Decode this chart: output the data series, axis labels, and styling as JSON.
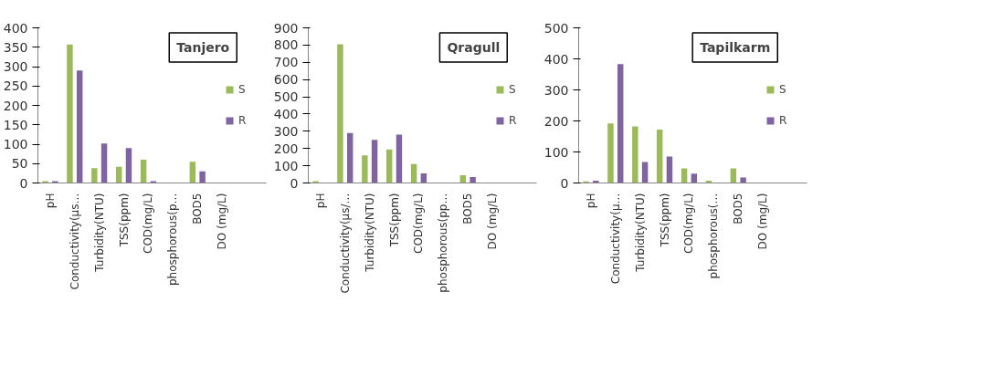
{
  "chart_data": [
    {
      "type": "bar",
      "title": "Tanjero",
      "categories": [
        "pH",
        "Conductivity(µs…",
        "Turbidity(NTU)",
        "TSS(ppm)",
        "COD(mg/L)",
        "phosphorous(p…",
        "BOD5",
        "DO (mg/L)"
      ],
      "series": [
        {
          "name": "S",
          "color": "#9bbb59",
          "values": [
            5,
            357,
            38,
            42,
            60,
            0,
            55,
            0
          ]
        },
        {
          "name": "R",
          "color": "#8064a2",
          "values": [
            5,
            290,
            102,
            90,
            5,
            0,
            30,
            0
          ]
        }
      ],
      "ylim": [
        0,
        400
      ],
      "yticks": [
        0,
        50,
        100,
        150,
        200,
        250,
        300,
        350,
        400
      ],
      "grid": false,
      "legend": "right"
    },
    {
      "type": "bar",
      "title": "Qragull",
      "categories": [
        "pH",
        "Conductivity(µs/…",
        "Turbidity(NTU)",
        "TSS(ppm)",
        "COD(mg/L)",
        "phosphorous(pp…",
        "BOD5",
        "DO (mg/L)"
      ],
      "series": [
        {
          "name": "S",
          "color": "#9bbb59",
          "values": [
            10,
            805,
            160,
            195,
            110,
            0,
            45,
            0
          ]
        },
        {
          "name": "R",
          "color": "#8064a2",
          "values": [
            0,
            290,
            250,
            280,
            55,
            0,
            35,
            0
          ]
        }
      ],
      "ylim": [
        0,
        900
      ],
      "yticks": [
        0,
        100,
        200,
        300,
        400,
        500,
        600,
        700,
        800,
        900
      ],
      "grid": false,
      "legend": "right"
    },
    {
      "type": "bar",
      "title": "Tapilkarm",
      "categories": [
        "pH",
        "Conductivity(µ…",
        "Turbidity(NTU)",
        "TSS(ppm)",
        "COD(mg/L)",
        "phosphorous(…",
        "BOD5",
        "DO (mg/L)"
      ],
      "series": [
        {
          "name": "S",
          "color": "#9bbb59",
          "values": [
            5,
            192,
            182,
            172,
            47,
            7,
            47,
            0
          ]
        },
        {
          "name": "R",
          "color": "#8064a2",
          "values": [
            7,
            383,
            68,
            85,
            30,
            0,
            18,
            0
          ]
        }
      ],
      "ylim": [
        0,
        500
      ],
      "yticks": [
        0,
        100,
        200,
        300,
        400,
        500
      ],
      "grid": false,
      "legend": "right"
    }
  ]
}
